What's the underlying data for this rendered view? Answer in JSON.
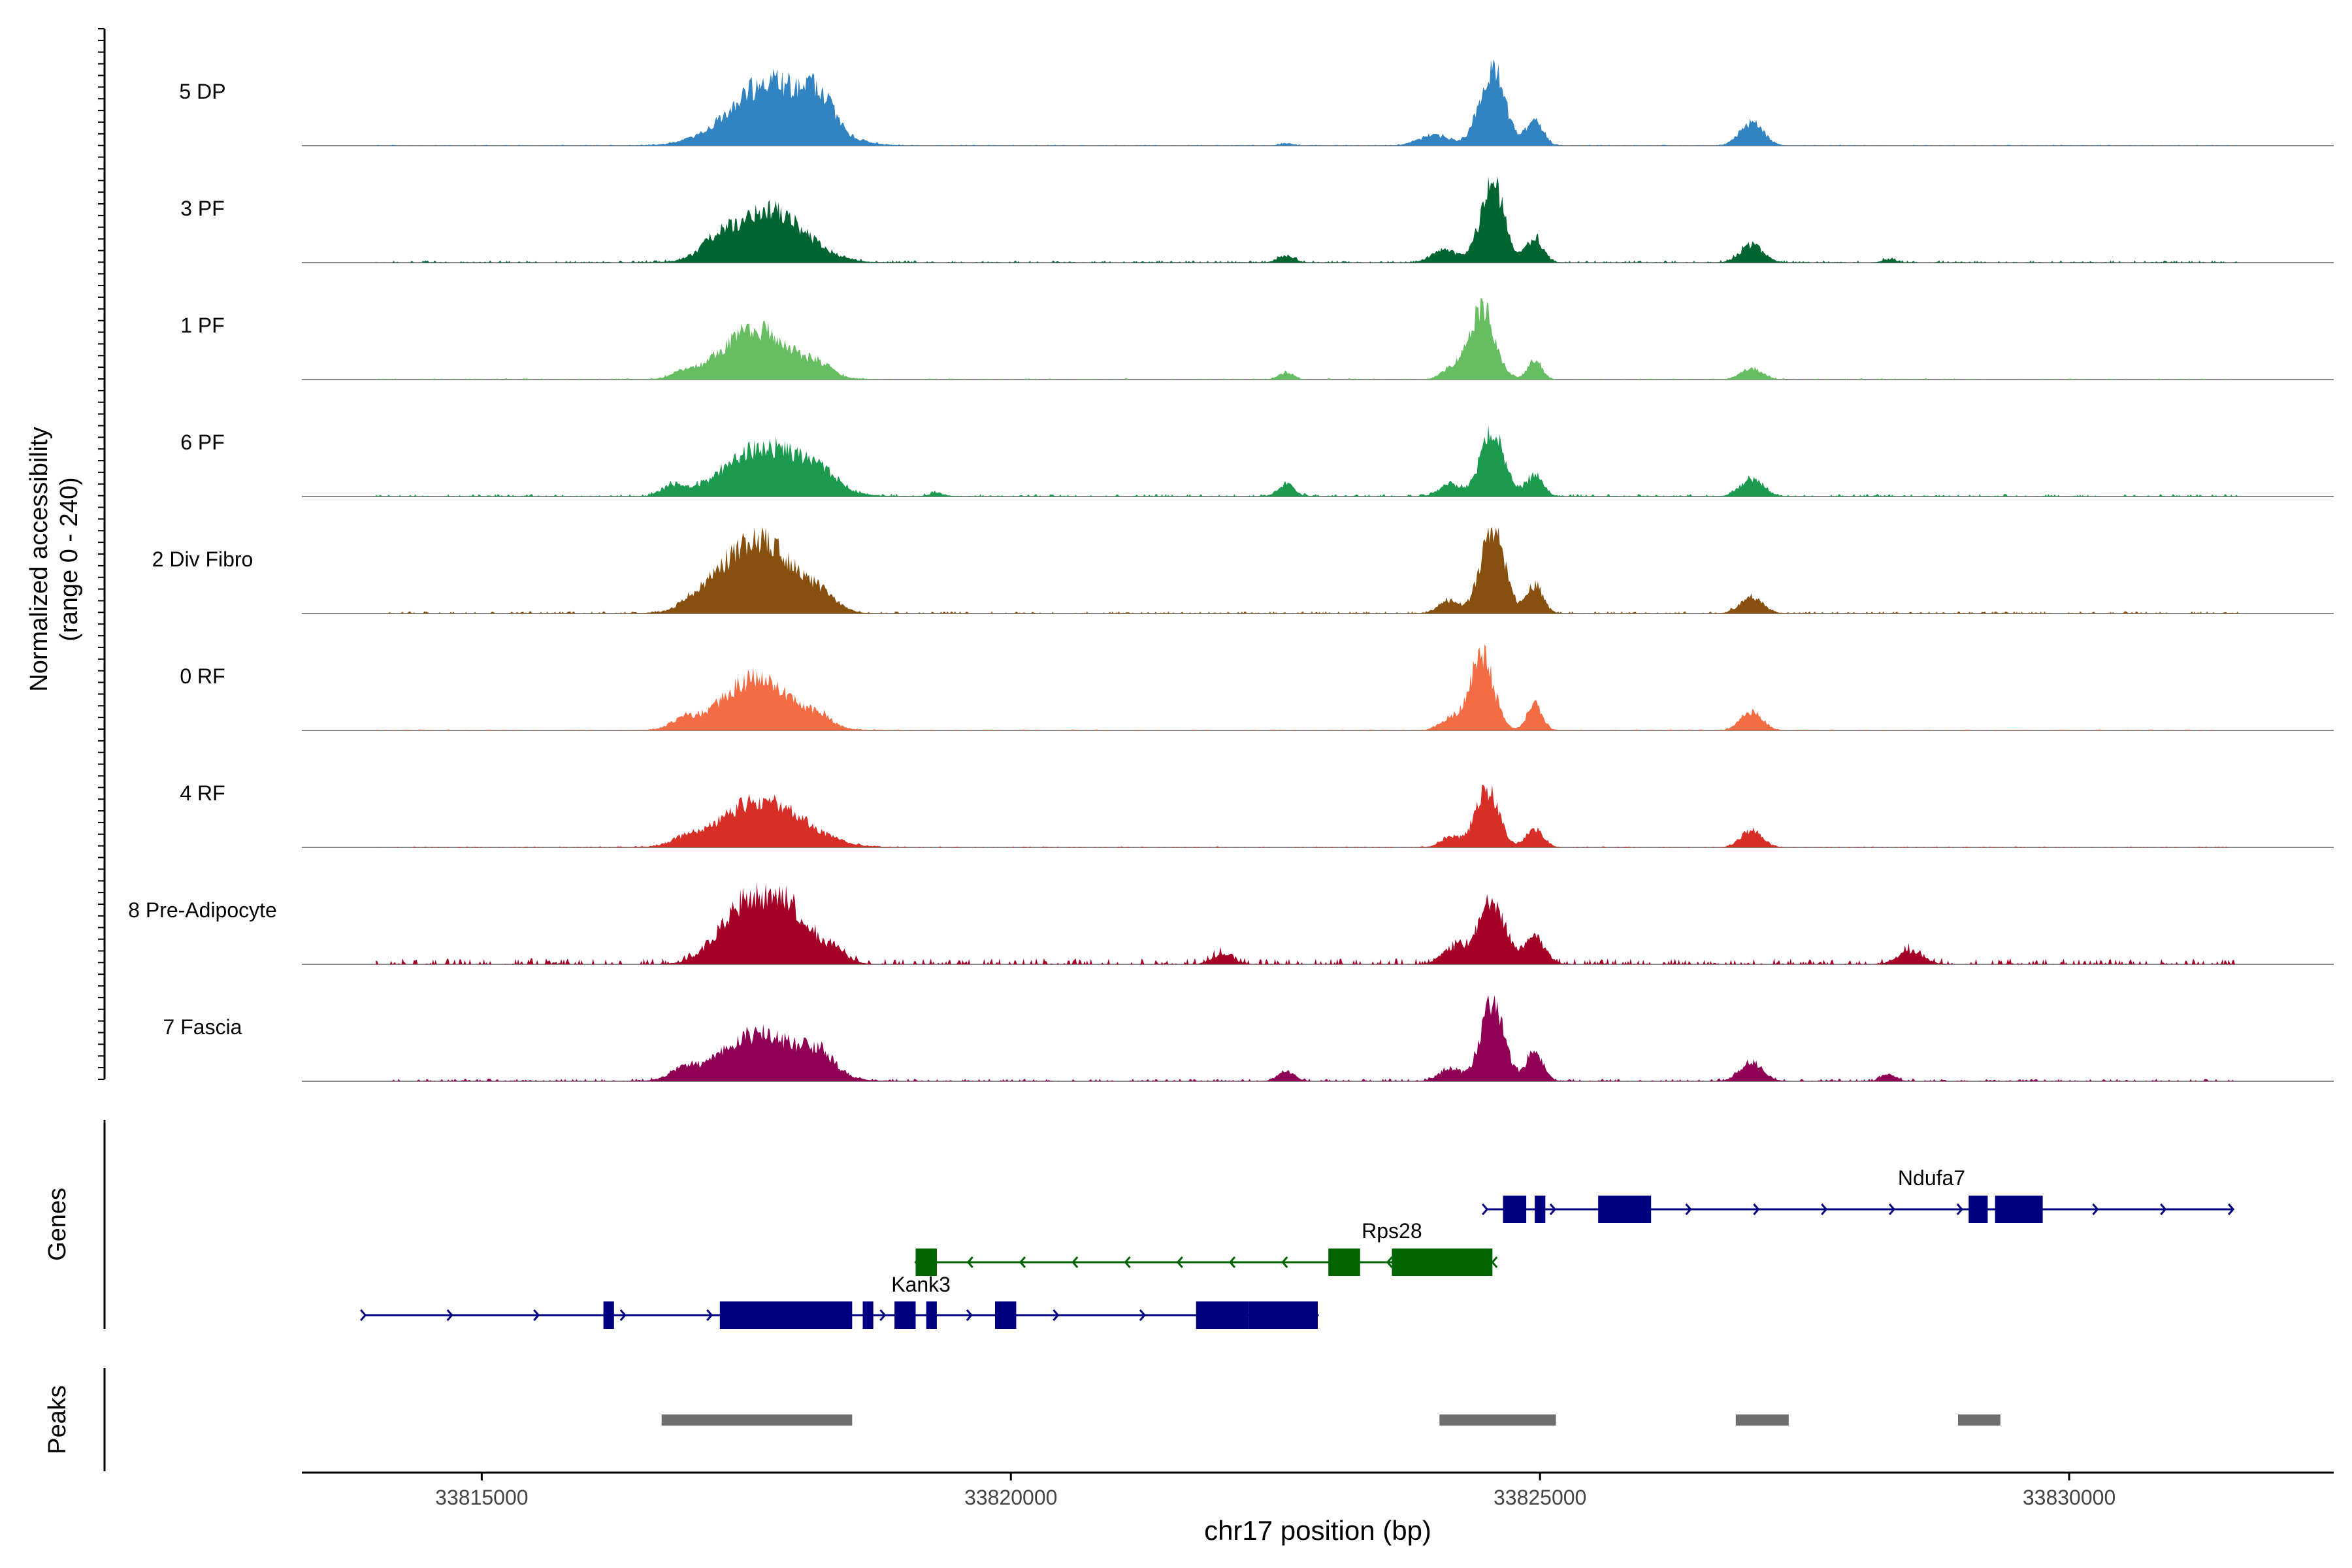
{
  "chart_data": {
    "type": "area",
    "title": "",
    "ylabel_line1": "Normalized accessibility",
    "ylabel_line2": "(range 0 - 240)",
    "ylim": [
      0,
      240
    ],
    "xlabel": "chr17 position (bp)",
    "xlim": [
      33813300,
      33832500
    ],
    "x_ticks": [
      33815000,
      33820000,
      33825000,
      33830000
    ],
    "x_tick_labels": [
      "33815000",
      "33820000",
      "33825000",
      "33830000"
    ],
    "track_order": [
      "5 DP",
      "3 PF",
      "1 PF",
      "6 PF",
      "2 Div Fibro",
      "0 RF",
      "4 RF",
      "8 Pre-Adipocyte",
      "7 Fascia"
    ],
    "tracks": [
      {
        "name": "5 DP",
        "color": "#3283c1",
        "peaks": [
          [
            33817750,
            0.75,
            380
          ],
          [
            33818200,
            0.28,
            120
          ],
          [
            33824550,
            0.88,
            120
          ],
          [
            33824950,
            0.28,
            80
          ],
          [
            33824000,
            0.12,
            150
          ],
          [
            33827000,
            0.27,
            110
          ],
          [
            33822600,
            0.03,
            60
          ]
        ],
        "noise": 0.012
      },
      {
        "name": "3 PF",
        "color": "#006530",
        "peaks": [
          [
            33817700,
            0.62,
            340
          ],
          [
            33817200,
            0.12,
            120
          ],
          [
            33824550,
            0.92,
            110
          ],
          [
            33824950,
            0.28,
            80
          ],
          [
            33824100,
            0.15,
            120
          ],
          [
            33827000,
            0.2,
            110
          ],
          [
            33822600,
            0.08,
            80
          ],
          [
            33828300,
            0.04,
            60
          ]
        ],
        "noise": 0.025
      },
      {
        "name": "1 PF",
        "color": "#67bd61",
        "peaks": [
          [
            33817600,
            0.58,
            330
          ],
          [
            33818200,
            0.1,
            120
          ],
          [
            33816900,
            0.06,
            100
          ],
          [
            33824450,
            0.82,
            120
          ],
          [
            33824950,
            0.22,
            70
          ],
          [
            33824150,
            0.12,
            90
          ],
          [
            33827000,
            0.13,
            100
          ],
          [
            33822600,
            0.08,
            70
          ]
        ],
        "noise": 0.015
      },
      {
        "name": "6 PF",
        "color": "#1c9a50",
        "peaks": [
          [
            33817700,
            0.58,
            380
          ],
          [
            33818200,
            0.14,
            140
          ],
          [
            33816800,
            0.1,
            100
          ],
          [
            33824550,
            0.78,
            110
          ],
          [
            33824950,
            0.24,
            80
          ],
          [
            33824150,
            0.15,
            100
          ],
          [
            33827000,
            0.2,
            110
          ],
          [
            33822600,
            0.14,
            80
          ],
          [
            33819300,
            0.04,
            80
          ]
        ],
        "noise": 0.03
      },
      {
        "name": "2 Div Fibro",
        "color": "#87500f",
        "peaks": [
          [
            33817600,
            0.88,
            330
          ],
          [
            33818200,
            0.15,
            140
          ],
          [
            33817000,
            0.08,
            120
          ],
          [
            33824550,
            0.98,
            110
          ],
          [
            33824950,
            0.32,
            80
          ],
          [
            33824150,
            0.15,
            100
          ],
          [
            33827000,
            0.18,
            110
          ]
        ],
        "noise": 0.025
      },
      {
        "name": "0 RF",
        "color": "#f46c43",
        "peaks": [
          [
            33817600,
            0.6,
            330
          ],
          [
            33816900,
            0.1,
            110
          ],
          [
            33818200,
            0.1,
            110
          ],
          [
            33824450,
            0.88,
            110
          ],
          [
            33824950,
            0.3,
            70
          ],
          [
            33824150,
            0.14,
            100
          ],
          [
            33827000,
            0.22,
            100
          ]
        ],
        "noise": 0.012
      },
      {
        "name": "4 RF",
        "color": "#d72f27",
        "peaks": [
          [
            33817650,
            0.55,
            380
          ],
          [
            33816900,
            0.06,
            110
          ],
          [
            33824500,
            0.7,
            110
          ],
          [
            33824950,
            0.22,
            80
          ],
          [
            33824150,
            0.12,
            90
          ],
          [
            33827000,
            0.2,
            100
          ]
        ],
        "noise": 0.012
      },
      {
        "name": "8 Pre-Adipocyte",
        "color": "#a50026",
        "peaks": [
          [
            33817500,
            0.68,
            250
          ],
          [
            33817900,
            0.55,
            180
          ],
          [
            33818300,
            0.18,
            140
          ],
          [
            33824550,
            0.72,
            120
          ],
          [
            33824950,
            0.3,
            100
          ],
          [
            33824200,
            0.2,
            120
          ],
          [
            33828500,
            0.15,
            120
          ],
          [
            33822000,
            0.12,
            100
          ]
        ],
        "noise": 0.07
      },
      {
        "name": "7 Fascia",
        "color": "#8f0055",
        "peaks": [
          [
            33817650,
            0.55,
            380
          ],
          [
            33818200,
            0.18,
            140
          ],
          [
            33816900,
            0.1,
            110
          ],
          [
            33824550,
            0.92,
            110
          ],
          [
            33824950,
            0.35,
            80
          ],
          [
            33824150,
            0.15,
            100
          ],
          [
            33827000,
            0.22,
            110
          ],
          [
            33822600,
            0.12,
            80
          ],
          [
            33828300,
            0.08,
            70
          ]
        ],
        "noise": 0.03
      }
    ],
    "genes_label": "Genes",
    "genes": [
      {
        "name": "Ndufa7",
        "strand": "+",
        "color": "#000080",
        "start": 33824500,
        "end": 33831550,
        "exons": [
          [
            33824650,
            33824870
          ],
          [
            33824950,
            33825050
          ],
          [
            33825550,
            33826050
          ],
          [
            33829050,
            33829230
          ],
          [
            33829300,
            33829750
          ]
        ]
      },
      {
        "name": "Rps28",
        "strand": "-",
        "color": "#006400",
        "start": 33819100,
        "end": 33824550,
        "exons": [
          [
            33819100,
            33819300
          ],
          [
            33823000,
            33823300
          ],
          [
            33823600,
            33824550
          ]
        ]
      },
      {
        "name": "Kank3",
        "strand": "+",
        "color": "#000080",
        "start": 33813900,
        "end": 33822900,
        "exons": [
          [
            33816150,
            33816250
          ],
          [
            33817250,
            33818500
          ],
          [
            33818600,
            33818700
          ],
          [
            33818900,
            33819100
          ],
          [
            33819200,
            33819300
          ],
          [
            33819850,
            33820050
          ],
          [
            33821750,
            33822250
          ],
          [
            33822250,
            33822900
          ]
        ]
      }
    ],
    "peaks_label": "Peaks",
    "peak_regions": [
      [
        33816700,
        33818500
      ],
      [
        33824050,
        33825150
      ],
      [
        33826850,
        33827350
      ],
      [
        33828950,
        33829350
      ]
    ]
  }
}
